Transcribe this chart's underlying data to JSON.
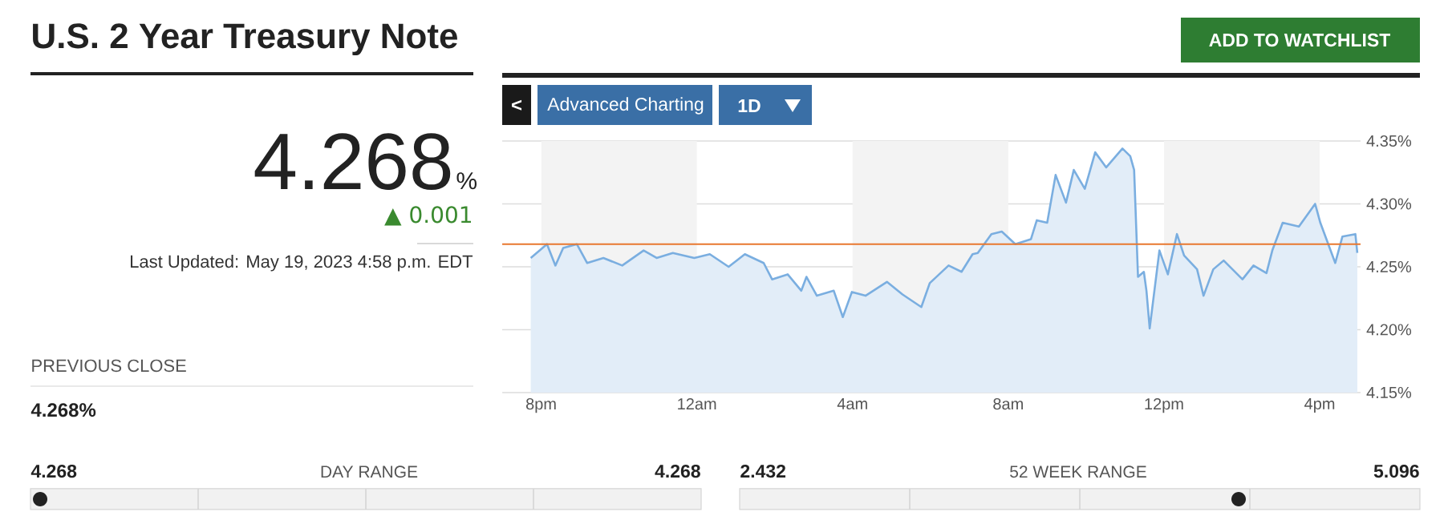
{
  "chart_data": {
    "type": "area",
    "title": "U.S. 2 Year Treasury Note",
    "annotations": [
      "4.268",
      "%",
      "▲ 0.001",
      "Last Updated: May 19, 2023 4:58 p.m. EDT",
      "PREVIOUS CLOSE",
      "4.268%",
      "4.268",
      "DAY RANGE",
      "4.268",
      "2.432",
      "52 WEEK RANGE",
      "5.096",
      "ADD TO WATCHLIST",
      "<",
      "Advanced Charting",
      "1D"
    ],
    "series": [
      {
        "color": "#7aaee0",
        "x": [
          "2023-05-18T19:44",
          "2023-05-18T20:09",
          "2023-05-18T20:22",
          "2023-05-18T20:34",
          "2023-05-18T20:55",
          "2023-05-18T21:11",
          "2023-05-18T21:36",
          "2023-05-18T22:05",
          "2023-05-18T22:38",
          "2023-05-18T22:58",
          "2023-05-18T23:23",
          "2023-05-18T23:56",
          "2023-05-19T00:20",
          "2023-05-19T00:49",
          "2023-05-19T01:14",
          "2023-05-19T01:43",
          "2023-05-19T01:56",
          "2023-05-19T02:20",
          "2023-05-19T02:41",
          "2023-05-19T02:49",
          "2023-05-19T03:05",
          "2023-05-19T03:31",
          "2023-05-19T03:45",
          "2023-05-19T03:59",
          "2023-05-19T04:20",
          "2023-05-19T04:53",
          "2023-05-19T05:17",
          "2023-05-19T05:46",
          "2023-05-19T05:59",
          "2023-05-19T06:28",
          "2023-05-19T06:48",
          "2023-05-19T07:05",
          "2023-05-19T07:13",
          "2023-05-19T07:34",
          "2023-05-19T07:50",
          "2023-05-19T08:11",
          "2023-05-19T08:35",
          "2023-05-19T08:44",
          "2023-05-19T09:00",
          "2023-05-19T09:13",
          "2023-05-19T09:29",
          "2023-05-19T09:41",
          "2023-05-19T09:58",
          "2023-05-19T10:14",
          "2023-05-19T10:31",
          "2023-05-19T10:56",
          "2023-05-19T11:08",
          "2023-05-19T11:14",
          "2023-05-19T11:20",
          "2023-05-19T11:29",
          "2023-05-19T11:33",
          "2023-05-19T11:38",
          "2023-05-19T11:53",
          "2023-05-19T12:06",
          "2023-05-19T12:20",
          "2023-05-19T12:31",
          "2023-05-19T12:51",
          "2023-05-19T13:01",
          "2023-05-19T13:16",
          "2023-05-19T13:32",
          "2023-05-19T14:01",
          "2023-05-19T14:18",
          "2023-05-19T14:38",
          "2023-05-19T14:47",
          "2023-05-19T15:03",
          "2023-05-19T15:28",
          "2023-05-19T15:53",
          "2023-05-19T16:01",
          "2023-05-19T16:24",
          "2023-05-19T16:35",
          "2023-05-19T16:55",
          "2023-05-19T16:58"
        ],
        "values": [
          4.257,
          4.268,
          4.251,
          4.265,
          4.268,
          4.253,
          4.257,
          4.251,
          4.263,
          4.257,
          4.261,
          4.257,
          4.26,
          4.25,
          4.26,
          4.253,
          4.24,
          4.244,
          4.231,
          4.242,
          4.227,
          4.231,
          4.21,
          4.23,
          4.227,
          4.238,
          4.228,
          4.218,
          4.237,
          4.251,
          4.246,
          4.26,
          4.261,
          4.276,
          4.278,
          4.268,
          4.272,
          4.287,
          4.285,
          4.323,
          4.301,
          4.327,
          4.312,
          4.341,
          4.329,
          4.344,
          4.338,
          4.327,
          4.242,
          4.246,
          4.231,
          4.201,
          4.263,
          4.244,
          4.276,
          4.259,
          4.248,
          4.227,
          4.248,
          4.255,
          4.24,
          4.251,
          4.245,
          4.263,
          4.285,
          4.282,
          4.3,
          4.285,
          4.253,
          4.274,
          4.276,
          4.261
        ]
      }
    ],
    "xlim": [
      "2023-05-18T19:00",
      "2023-05-19T17:03"
    ],
    "ylim": [
      4.15,
      4.35
    ],
    "xticks": [
      {
        "value": "2023-05-18T20:00",
        "label": "8pm"
      },
      {
        "value": "2023-05-19T00:00",
        "label": "12am"
      },
      {
        "value": "2023-05-19T04:00",
        "label": "4am"
      },
      {
        "value": "2023-05-19T08:00",
        "label": "8am"
      },
      {
        "value": "2023-05-19T12:00",
        "label": "12pm"
      },
      {
        "value": "2023-05-19T16:00",
        "label": "4pm"
      }
    ],
    "yticks": [
      {
        "value": 4.15,
        "label": "4.15%"
      },
      {
        "value": 4.2,
        "label": "4.20%"
      },
      {
        "value": 4.25,
        "label": "4.25%"
      },
      {
        "value": 4.3,
        "label": "4.30%"
      },
      {
        "value": 4.35,
        "label": "4.35%"
      }
    ],
    "grid": "y",
    "marker": "none",
    "line_style": "solid",
    "ref_lines": [
      {
        "axis": "y",
        "value": 4.268,
        "color": "#e8772e"
      }
    ],
    "bands": [
      {
        "axis": "x",
        "from": "2023-05-18T20:00",
        "to": "2023-05-19T00:00",
        "color": "#f3f3f3"
      },
      {
        "axis": "x",
        "from": "2023-05-19T04:00",
        "to": "2023-05-19T08:00",
        "color": "#f3f3f3"
      },
      {
        "axis": "x",
        "from": "2023-05-19T12:00",
        "to": "2023-05-19T16:00",
        "color": "#f3f3f3"
      }
    ]
  }
}
